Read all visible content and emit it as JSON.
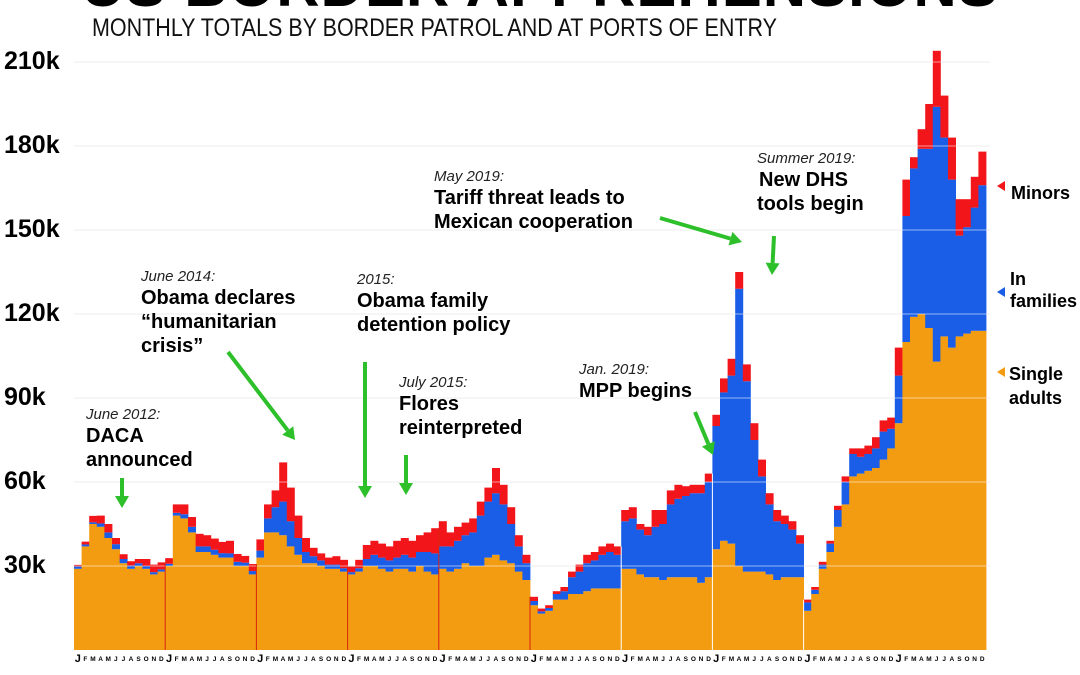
{
  "chart_data": {
    "type": "bar",
    "stacked": true,
    "title": "US BORDER APPREHENSIONS",
    "subtitle": "MONTHLY TOTALS BY BORDER PATROL AND AT PORTS OF ENTRY",
    "ylim": [
      0,
      210000
    ],
    "yticks": [
      30000,
      60000,
      90000,
      120000,
      150000,
      180000,
      210000
    ],
    "ytick_labels": [
      "30k",
      "60k",
      "90k",
      "120k",
      "150k",
      "180k",
      "210k"
    ],
    "x_month_labels": [
      "J",
      "F",
      "M",
      "A",
      "M",
      "J",
      "J",
      "A",
      "S",
      "O",
      "N",
      "D"
    ],
    "years": 9,
    "grid": true,
    "legend_position": "right",
    "series": [
      {
        "name": "Single adults",
        "color": "#F39C12",
        "values": [
          29000,
          37000,
          45000,
          44000,
          40000,
          36000,
          31000,
          29000,
          30000,
          29000,
          27000,
          28000,
          30000,
          48000,
          47000,
          42000,
          35000,
          35000,
          34000,
          33000,
          33000,
          30000,
          30000,
          27000,
          33000,
          42000,
          42000,
          41000,
          37000,
          34000,
          31000,
          31000,
          30000,
          29000,
          29000,
          28000,
          27000,
          28000,
          30000,
          30000,
          29000,
          28000,
          29000,
          29000,
          28000,
          30000,
          28000,
          27000,
          29000,
          28000,
          29000,
          31000,
          30000,
          30000,
          33000,
          34000,
          32000,
          31000,
          28000,
          25000,
          16000,
          13000,
          14000,
          18000,
          18000,
          20000,
          20000,
          21000,
          22000,
          22000,
          22000,
          22000,
          29000,
          29000,
          27000,
          26000,
          26000,
          25000,
          26000,
          26000,
          26000,
          26000,
          24000,
          26000,
          36000,
          39000,
          38000,
          30000,
          28000,
          28000,
          28000,
          27000,
          25000,
          26000,
          26000,
          26000,
          14000,
          20000,
          29000,
          35000,
          44000,
          52000,
          62000,
          63000,
          64000,
          65000,
          68000,
          72000,
          81000,
          110000,
          119000,
          120000,
          115000,
          103000,
          112000,
          108000,
          112000,
          113000,
          114000,
          114000
        ]
      },
      {
        "name": "In families",
        "color": "#1A5EE8",
        "values": [
          800,
          700,
          600,
          1200,
          2000,
          1800,
          1500,
          1200,
          1000,
          1000,
          800,
          800,
          800,
          1000,
          1500,
          2000,
          2000,
          2000,
          1800,
          1600,
          1500,
          1500,
          1200,
          1200,
          2500,
          5000,
          9000,
          12000,
          9000,
          6000,
          4000,
          2500,
          2000,
          1500,
          1500,
          1200,
          800,
          1200,
          2500,
          4000,
          4000,
          4000,
          4000,
          5000,
          5000,
          5000,
          7000,
          7500,
          8000,
          9000,
          10000,
          10000,
          12000,
          18000,
          20000,
          22000,
          20000,
          14000,
          9000,
          6000,
          1500,
          800,
          1000,
          2000,
          3000,
          6000,
          8000,
          10000,
          10000,
          12000,
          13000,
          12000,
          17000,
          18000,
          16000,
          15000,
          18000,
          20000,
          26000,
          28000,
          29000,
          30000,
          32000,
          34000,
          44000,
          53000,
          60000,
          99000,
          68000,
          47000,
          34000,
          25000,
          21000,
          19000,
          17000,
          12000,
          3000,
          1500,
          1500,
          3000,
          6000,
          8000,
          8000,
          6000,
          6000,
          7000,
          10000,
          7000,
          17000,
          45000,
          53000,
          59000,
          64000,
          91000,
          71000,
          60000,
          36000,
          38000,
          44000,
          52000
        ]
      },
      {
        "name": "Minors",
        "color": "#F2161B",
        "values": [
          600,
          1000,
          2300,
          2800,
          3000,
          2200,
          1700,
          1500,
          1500,
          2500,
          2700,
          2500,
          2000,
          3000,
          3500,
          3500,
          4500,
          4000,
          4000,
          4000,
          4500,
          2800,
          2400,
          2500,
          4000,
          5000,
          6000,
          14000,
          12000,
          8000,
          5000,
          3000,
          2500,
          2500,
          3000,
          3000,
          2000,
          3000,
          5000,
          5000,
          5000,
          5000,
          6000,
          6000,
          6000,
          6000,
          7000,
          9000,
          9000,
          5000,
          5000,
          4500,
          5000,
          5000,
          5000,
          9000,
          7000,
          6000,
          4000,
          3000,
          1500,
          1000,
          1000,
          1000,
          1500,
          2000,
          2500,
          3000,
          3000,
          3000,
          3000,
          3000,
          4000,
          4000,
          2000,
          3000,
          6000,
          5000,
          5000,
          5000,
          3500,
          3000,
          3000,
          3000,
          4000,
          5000,
          6000,
          6000,
          6000,
          6000,
          6000,
          4000,
          4000,
          3000,
          3000,
          3000,
          1000,
          1000,
          1000,
          1000,
          1500,
          2000,
          2000,
          3000,
          3000,
          4000,
          4000,
          4000,
          10000,
          13000,
          4000,
          7000,
          16000,
          20000,
          15000,
          15000,
          13000,
          10000,
          11000,
          12000
        ]
      }
    ],
    "annotations": [
      {
        "date": "June 2012:",
        "text": [
          "DACA",
          "announced"
        ]
      },
      {
        "date": "June 2014:",
        "text": [
          "Obama declares",
          "“humanitarian",
          "crisis”"
        ]
      },
      {
        "date": "2015:",
        "text": [
          "Obama family",
          "detention policy"
        ]
      },
      {
        "date": "July 2015:",
        "text": [
          "Flores",
          "reinterpreted"
        ]
      },
      {
        "date": "Jan. 2019:",
        "text": [
          "MPP begins"
        ]
      },
      {
        "date": "May 2019:",
        "text": [
          "Tariff threat leads to",
          "Mexican cooperation"
        ]
      },
      {
        "date": "Summer 2019:",
        "text": [
          "New DHS",
          "tools begin"
        ]
      }
    ],
    "legend": [
      {
        "label": "Minors",
        "color": "#F2161B"
      },
      {
        "label": "In families",
        "color": "#1A5EE8"
      },
      {
        "label": "Single adults",
        "color": "#F39C12"
      }
    ],
    "arrow_color": "#2DC02A"
  }
}
